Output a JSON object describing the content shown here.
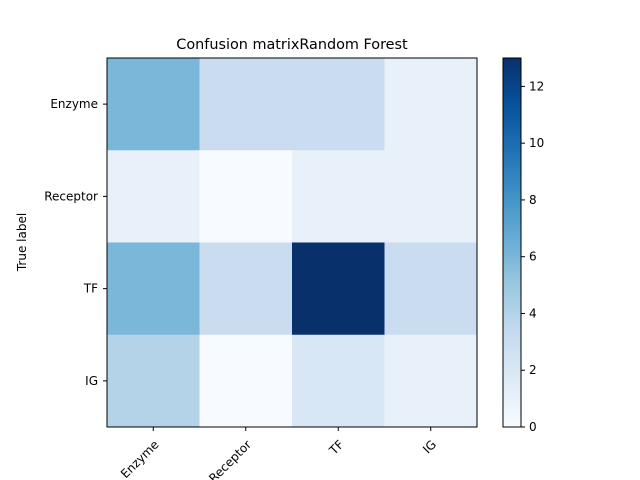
{
  "chart_data": {
    "type": "heatmap",
    "title": "Confusion matrixRandom Forest",
    "xlabel": "",
    "ylabel": "True label",
    "x_categories": [
      "Enzyme",
      "Receptor",
      "TF",
      "IG"
    ],
    "y_categories": [
      "Enzyme",
      "Receptor",
      "TF",
      "IG"
    ],
    "matrix": [
      [
        6,
        3,
        3,
        1
      ],
      [
        1,
        0,
        1,
        1
      ],
      [
        6,
        3,
        13,
        3
      ],
      [
        4,
        0,
        2,
        1
      ]
    ],
    "colorbar": {
      "range": [
        0,
        13
      ],
      "ticks": [
        0,
        2,
        4,
        6,
        8,
        10,
        12
      ],
      "colormap": "Blues"
    },
    "grid": false
  }
}
